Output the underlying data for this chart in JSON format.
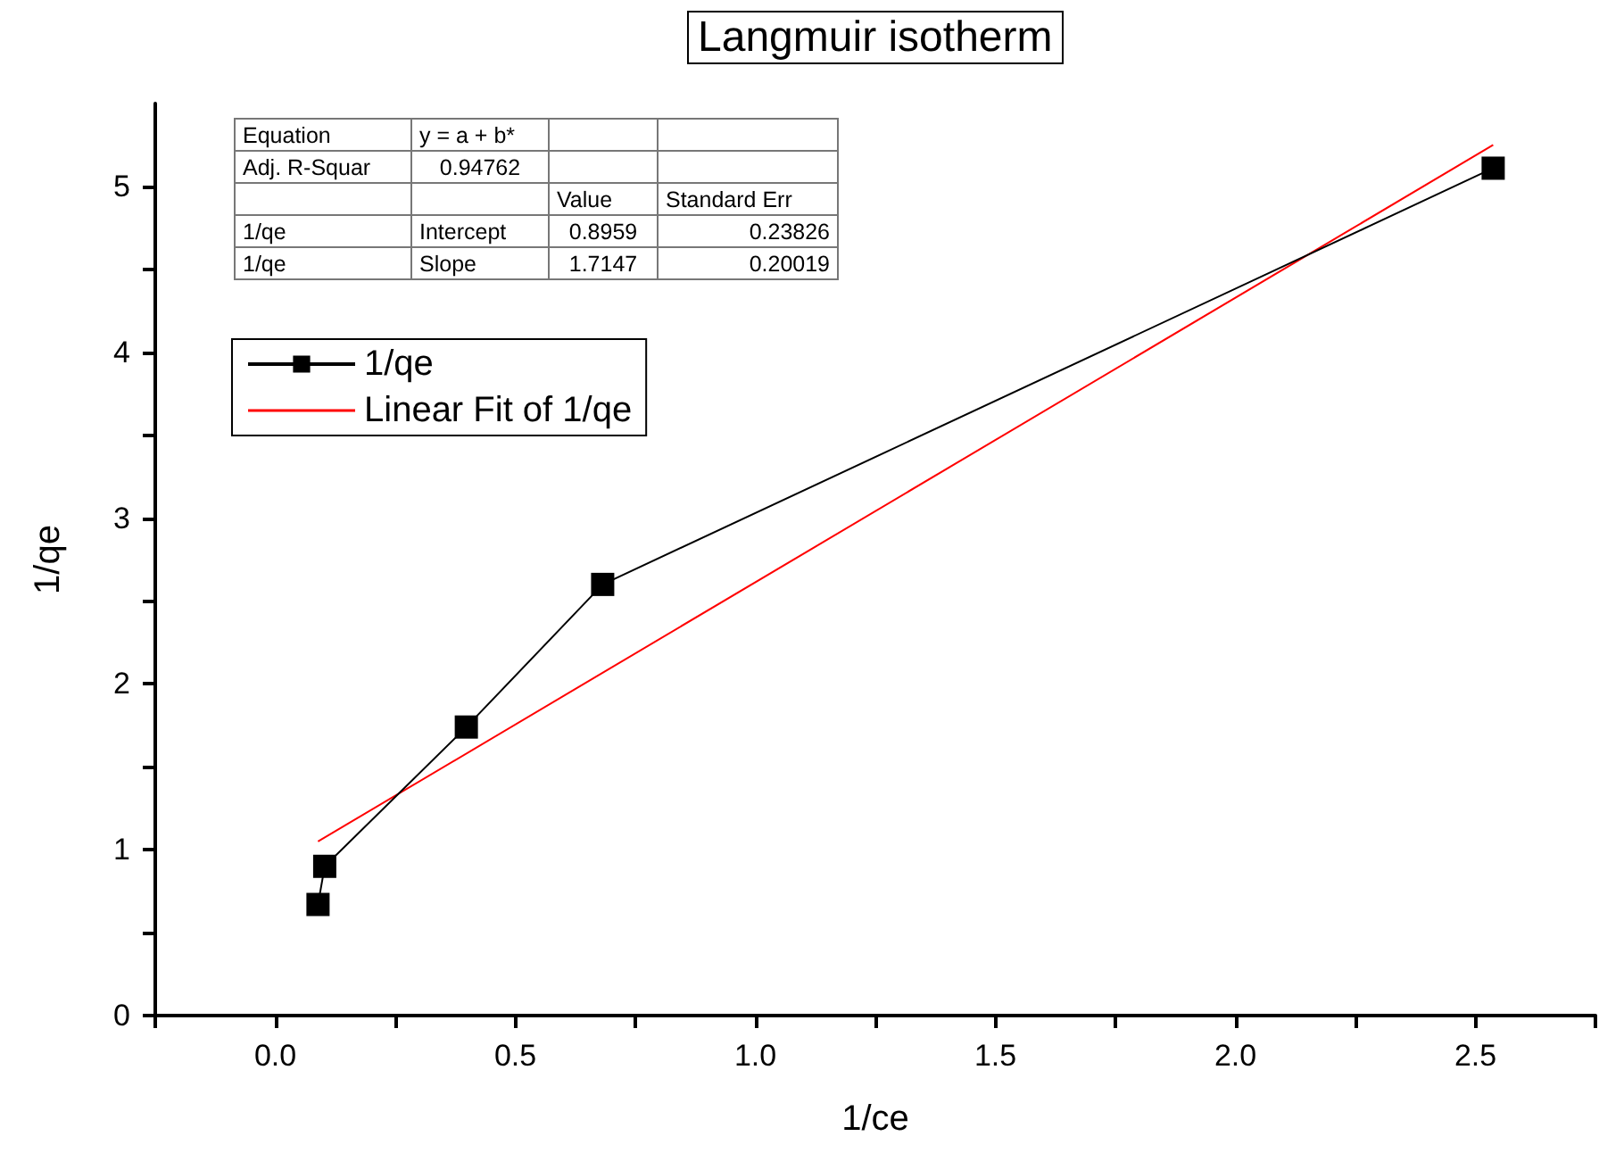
{
  "chart_data": {
    "type": "line",
    "title": "Langmuir isotherm",
    "xlabel": "1/ce",
    "ylabel": "1/qe",
    "xlim": [
      -0.25,
      2.75
    ],
    "ylim": [
      0,
      5.5
    ],
    "xticks": [
      {
        "value": -0.25,
        "label": null
      },
      {
        "value": 0,
        "label": "0.0"
      },
      {
        "value": 0.25,
        "label": null
      },
      0.5,
      {
        "value": 0.75,
        "label": null
      },
      {
        "value": 1,
        "label": "1.0"
      },
      {
        "value": 1.25,
        "label": null
      },
      1.5,
      {
        "value": 1.75,
        "label": null
      },
      {
        "value": 2,
        "label": "2.0"
      },
      {
        "value": 2.25,
        "label": null
      },
      2.5,
      {
        "value": 2.75,
        "label": null
      }
    ],
    "yticks": [
      0,
      {
        "value": 0.5,
        "label": null
      },
      1,
      {
        "value": 1.5,
        "label": null
      },
      2,
      {
        "value": 2.5,
        "label": null
      },
      3,
      {
        "value": 3.5,
        "label": null
      },
      4,
      {
        "value": 4.5,
        "label": null
      },
      5
    ],
    "series": [
      {
        "name": "1/qe",
        "color": "#000000",
        "marker": "square",
        "line_style": "solid",
        "x": [
          0.089,
          0.103,
          0.398,
          0.682,
          2.537
        ],
        "values": [
          0.67,
          0.9,
          1.74,
          2.6,
          5.11
        ]
      },
      {
        "name": "Linear Fit of 1/qe",
        "color": "#ff0000",
        "marker": "none",
        "line_style": "solid",
        "x": [
          0.089,
          2.537
        ],
        "values": [
          1.05,
          5.25
        ]
      }
    ],
    "annotations": [
      "Equation",
      "y = a + b*",
      "Adj. R-Squar",
      "0.94762",
      "Value",
      "Standard Err",
      "1/qe",
      "Intercept",
      "0.8959",
      "0.23826",
      "1/qe",
      "Slope",
      "1.7147",
      "0.20019"
    ],
    "legend": "top left",
    "grid": false
  }
}
